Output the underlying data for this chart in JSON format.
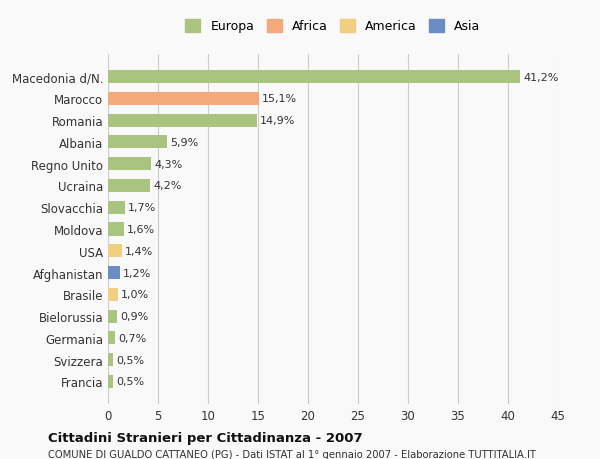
{
  "categories": [
    "Macedonia d/N.",
    "Marocco",
    "Romania",
    "Albania",
    "Regno Unito",
    "Ucraina",
    "Slovacchia",
    "Moldova",
    "USA",
    "Afghanistan",
    "Brasile",
    "Bielorussia",
    "Germania",
    "Svizzera",
    "Francia"
  ],
  "values": [
    41.2,
    15.1,
    14.9,
    5.9,
    4.3,
    4.2,
    1.7,
    1.6,
    1.4,
    1.2,
    1.0,
    0.9,
    0.7,
    0.5,
    0.5
  ],
  "labels": [
    "41,2%",
    "15,1%",
    "14,9%",
    "5,9%",
    "4,3%",
    "4,2%",
    "1,7%",
    "1,6%",
    "1,4%",
    "1,2%",
    "1,0%",
    "0,9%",
    "0,7%",
    "0,5%",
    "0,5%"
  ],
  "continent": [
    "Europa",
    "Africa",
    "Europa",
    "Europa",
    "Europa",
    "Europa",
    "Europa",
    "Europa",
    "America",
    "Asia",
    "America",
    "Europa",
    "Europa",
    "Europa",
    "Europa"
  ],
  "colors": {
    "Europa": "#a8c47f",
    "Africa": "#f4a97a",
    "America": "#f0d080",
    "Asia": "#6b8dc4"
  },
  "legend_colors": {
    "Europa": "#a8c47f",
    "Africa": "#f4a97a",
    "America": "#f0d080",
    "Asia": "#6b8dc4"
  },
  "xlim": [
    0,
    45
  ],
  "xticks": [
    0,
    5,
    10,
    15,
    20,
    25,
    30,
    35,
    40,
    45
  ],
  "title": "Cittadini Stranieri per Cittadinanza - 2007",
  "subtitle": "COMUNE DI GUALDO CATTANEO (PG) - Dati ISTAT al 1° gennaio 2007 - Elaborazione TUTTITALIA.IT",
  "background_color": "#f9f9f9",
  "bar_height": 0.6,
  "grid_color": "#cccccc"
}
